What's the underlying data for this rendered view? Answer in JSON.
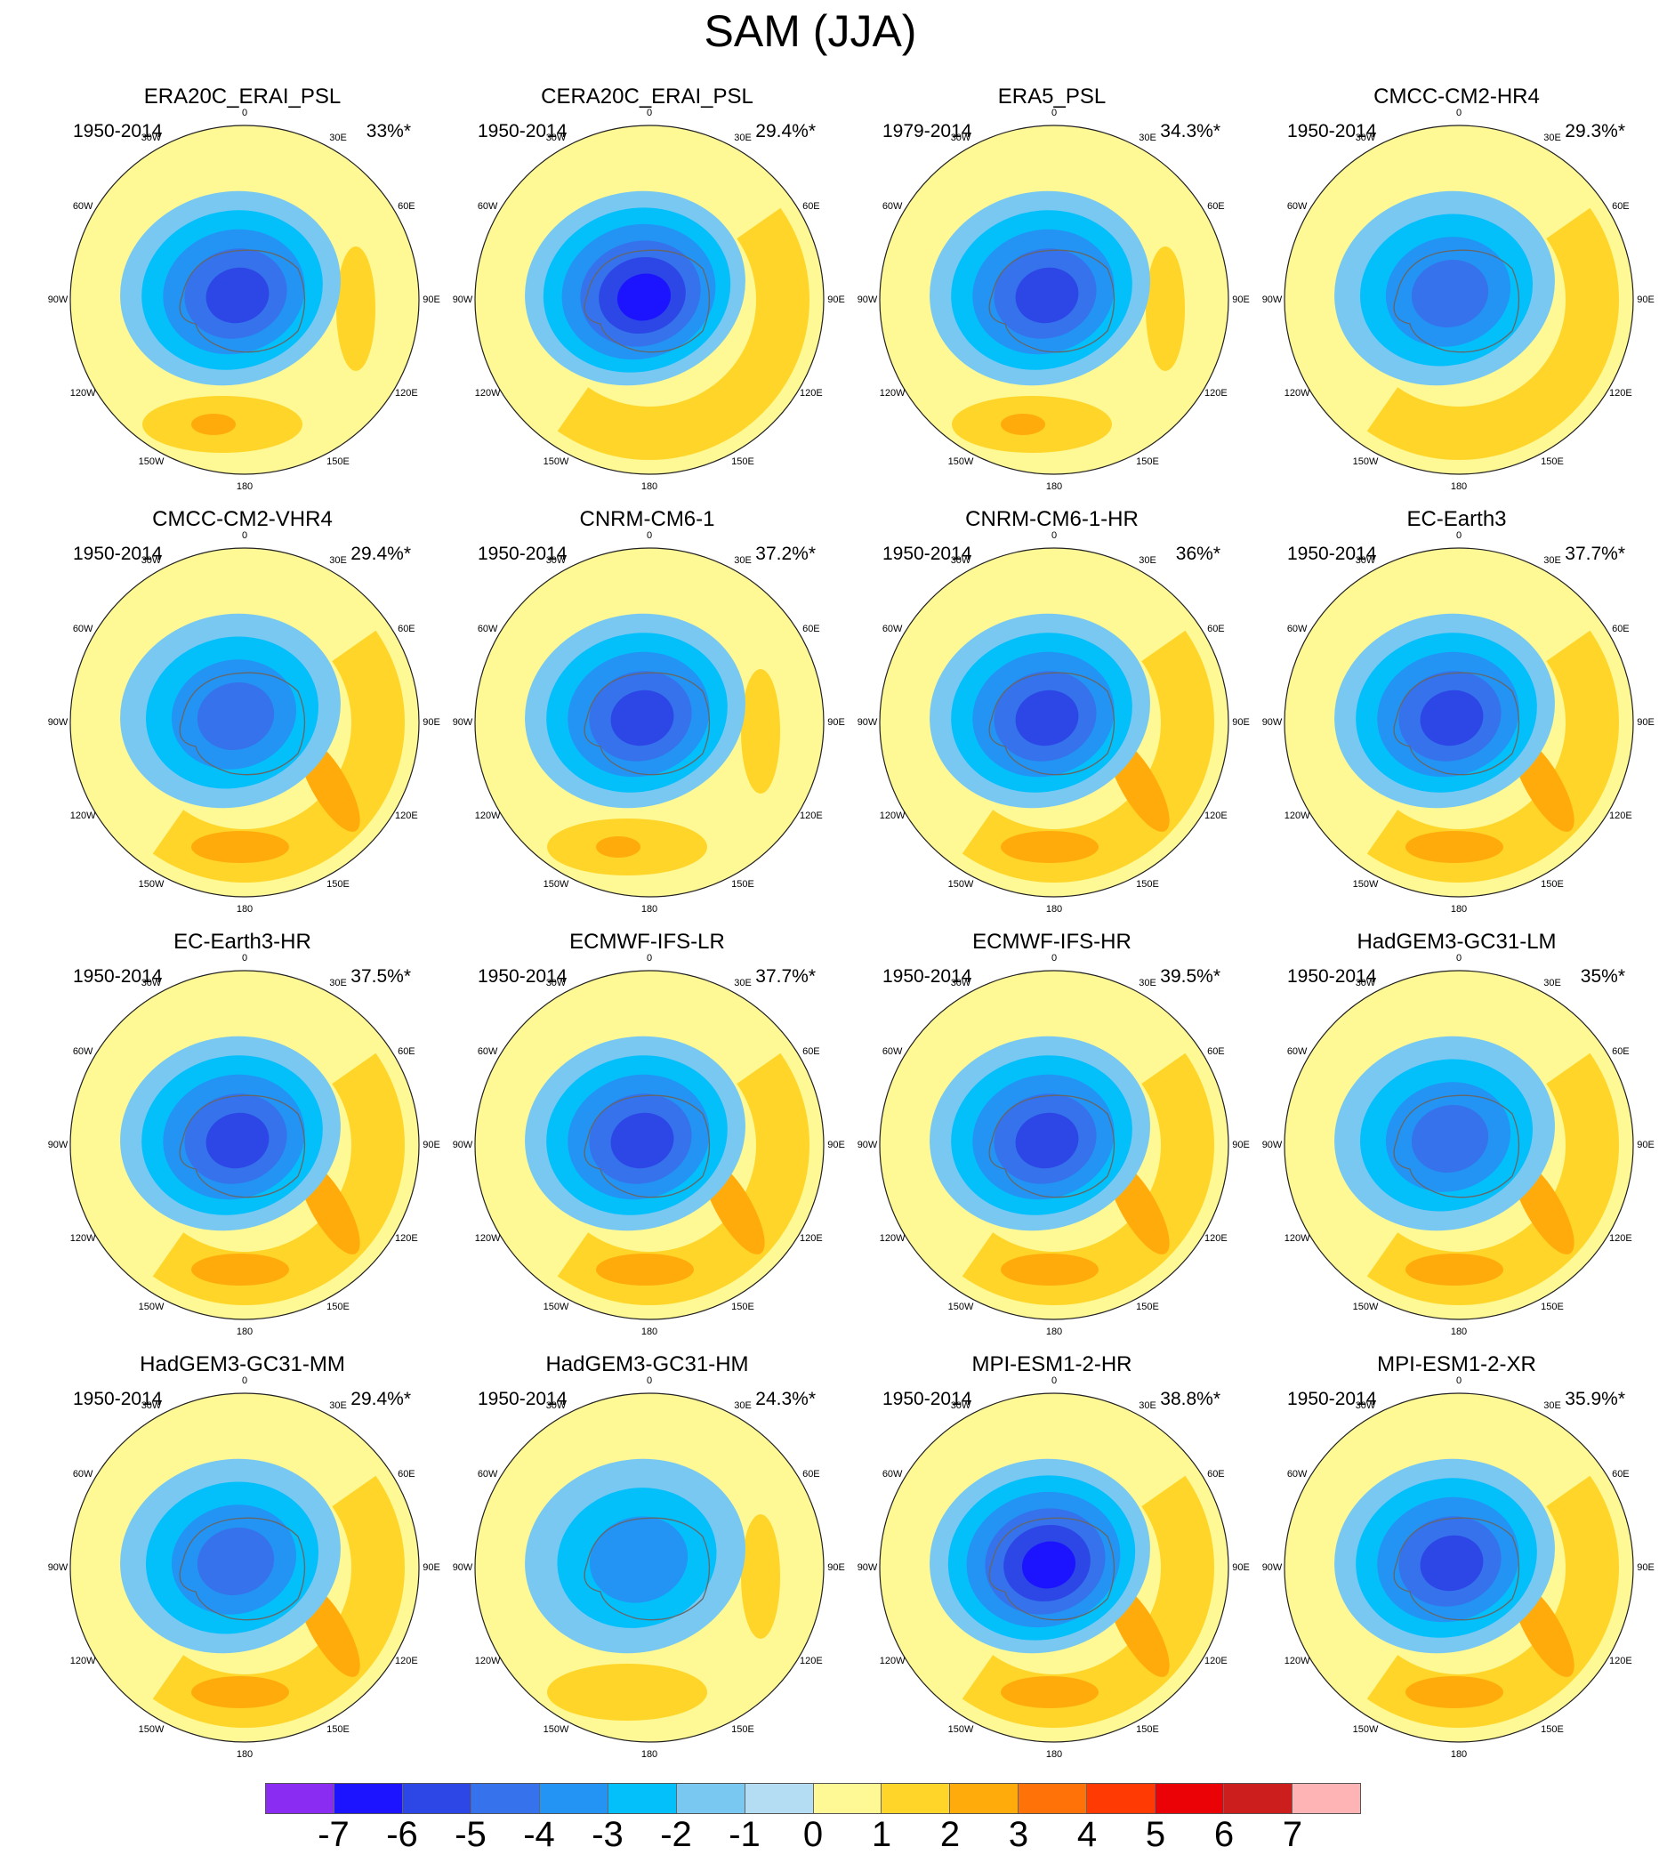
{
  "title": "SAM (JJA)",
  "colorbar": {
    "colors": [
      "#8a2cf1",
      "#1c14ff",
      "#2d46e6",
      "#3572ec",
      "#2393f4",
      "#03bffa",
      "#78c8f2",
      "#b4dcf2",
      "#fef895",
      "#ffd52a",
      "#ffab0c",
      "#ff7208",
      "#ff3a02",
      "#ea0207",
      "#cd1e1e",
      "#feb4b4"
    ],
    "labels": [
      "-7",
      "-6",
      "-5",
      "-4",
      "-3",
      "-2",
      "-1",
      "0",
      "1",
      "2",
      "3",
      "4",
      "5",
      "6",
      "7"
    ]
  },
  "longitude_labels": [
    "0",
    "30E",
    "60E",
    "90E",
    "120E",
    "150E",
    "180",
    "150W",
    "120W",
    "90W",
    "60W",
    "30W"
  ],
  "panels": [
    {
      "name": "ERA20C_ERAI_PSL",
      "period": "1950-2014",
      "variance": "33%*",
      "min_level": -5,
      "max_level": 3,
      "anchor": [
        250,
        300
      ],
      "east_anom": "weak"
    },
    {
      "name": "CERA20C_ERAI_PSL",
      "period": "1950-2014",
      "variance": "29.4%*",
      "min_level": -6,
      "max_level": 2,
      "anchor": [
        210,
        300
      ],
      "east_anom": "band"
    },
    {
      "name": "ERA5_PSL",
      "period": "1979-2014",
      "variance": "34.3%*",
      "min_level": -5,
      "max_level": 3,
      "anchor": [
        250,
        300
      ],
      "east_anom": "weak"
    },
    {
      "name": "CMCC-CM2-HR4",
      "period": "1950-2014",
      "variance": "29.3%*",
      "min_level": -4,
      "max_level": 2,
      "anchor": [
        230,
        300
      ],
      "east_anom": "band"
    },
    {
      "name": "CMCC-CM2-VHR4",
      "period": "1950-2014",
      "variance": "29.4%*",
      "min_level": -4,
      "max_level": 3,
      "anchor": [
        230,
        300
      ],
      "east_anom": "band"
    },
    {
      "name": "CNRM-CM6-1",
      "period": "1950-2014",
      "variance": "37.2%*",
      "min_level": -5,
      "max_level": 3,
      "anchor": [
        250,
        300
      ],
      "east_anom": "weak"
    },
    {
      "name": "CNRM-CM6-1-HR",
      "period": "1950-2014",
      "variance": "36%*",
      "min_level": -5,
      "max_level": 3,
      "anchor": [
        220,
        300
      ],
      "east_anom": "band"
    },
    {
      "name": "EC-Earth3",
      "period": "1950-2014",
      "variance": "37.7%*",
      "min_level": -5,
      "max_level": 3,
      "anchor": [
        220,
        300
      ],
      "east_anom": "band"
    },
    {
      "name": "EC-Earth3-HR",
      "period": "1950-2014",
      "variance": "37.5%*",
      "min_level": -5,
      "max_level": 3,
      "anchor": [
        120,
        300
      ],
      "east_anom": "band"
    },
    {
      "name": "ECMWF-IFS-LR",
      "period": "1950-2014",
      "variance": "37.7%*",
      "min_level": -5,
      "max_level": 3,
      "anchor": [
        250,
        300
      ],
      "east_anom": "band"
    },
    {
      "name": "ECMWF-IFS-HR",
      "period": "1950-2014",
      "variance": "39.5%*",
      "min_level": -5,
      "max_level": 3,
      "anchor": [
        250,
        300
      ],
      "east_anom": "band"
    },
    {
      "name": "HadGEM3-GC31-LM",
      "period": "1950-2014",
      "variance": "35%*",
      "min_level": -4,
      "max_level": 3,
      "anchor": [
        250,
        300
      ],
      "east_anom": "band"
    },
    {
      "name": "HadGEM3-GC31-MM",
      "period": "1950-2014",
      "variance": "29.4%*",
      "min_level": -4,
      "max_level": 3,
      "anchor": [
        250,
        300
      ],
      "east_anom": "band"
    },
    {
      "name": "HadGEM3-GC31-HM",
      "period": "1950-2014",
      "variance": "24.3%*",
      "min_level": -3,
      "max_level": 2,
      "anchor": [
        250,
        300
      ],
      "east_anom": "weak"
    },
    {
      "name": "MPI-ESM1-2-HR",
      "period": "1950-2014",
      "variance": "38.8%*",
      "min_level": -6,
      "max_level": 3,
      "anchor": [
        220,
        300
      ],
      "east_anom": "band"
    },
    {
      "name": "MPI-ESM1-2-XR",
      "period": "1950-2014",
      "variance": "35.9%*",
      "min_level": -5,
      "max_level": 3,
      "anchor": [
        120,
        300
      ],
      "east_anom": "band"
    }
  ]
}
